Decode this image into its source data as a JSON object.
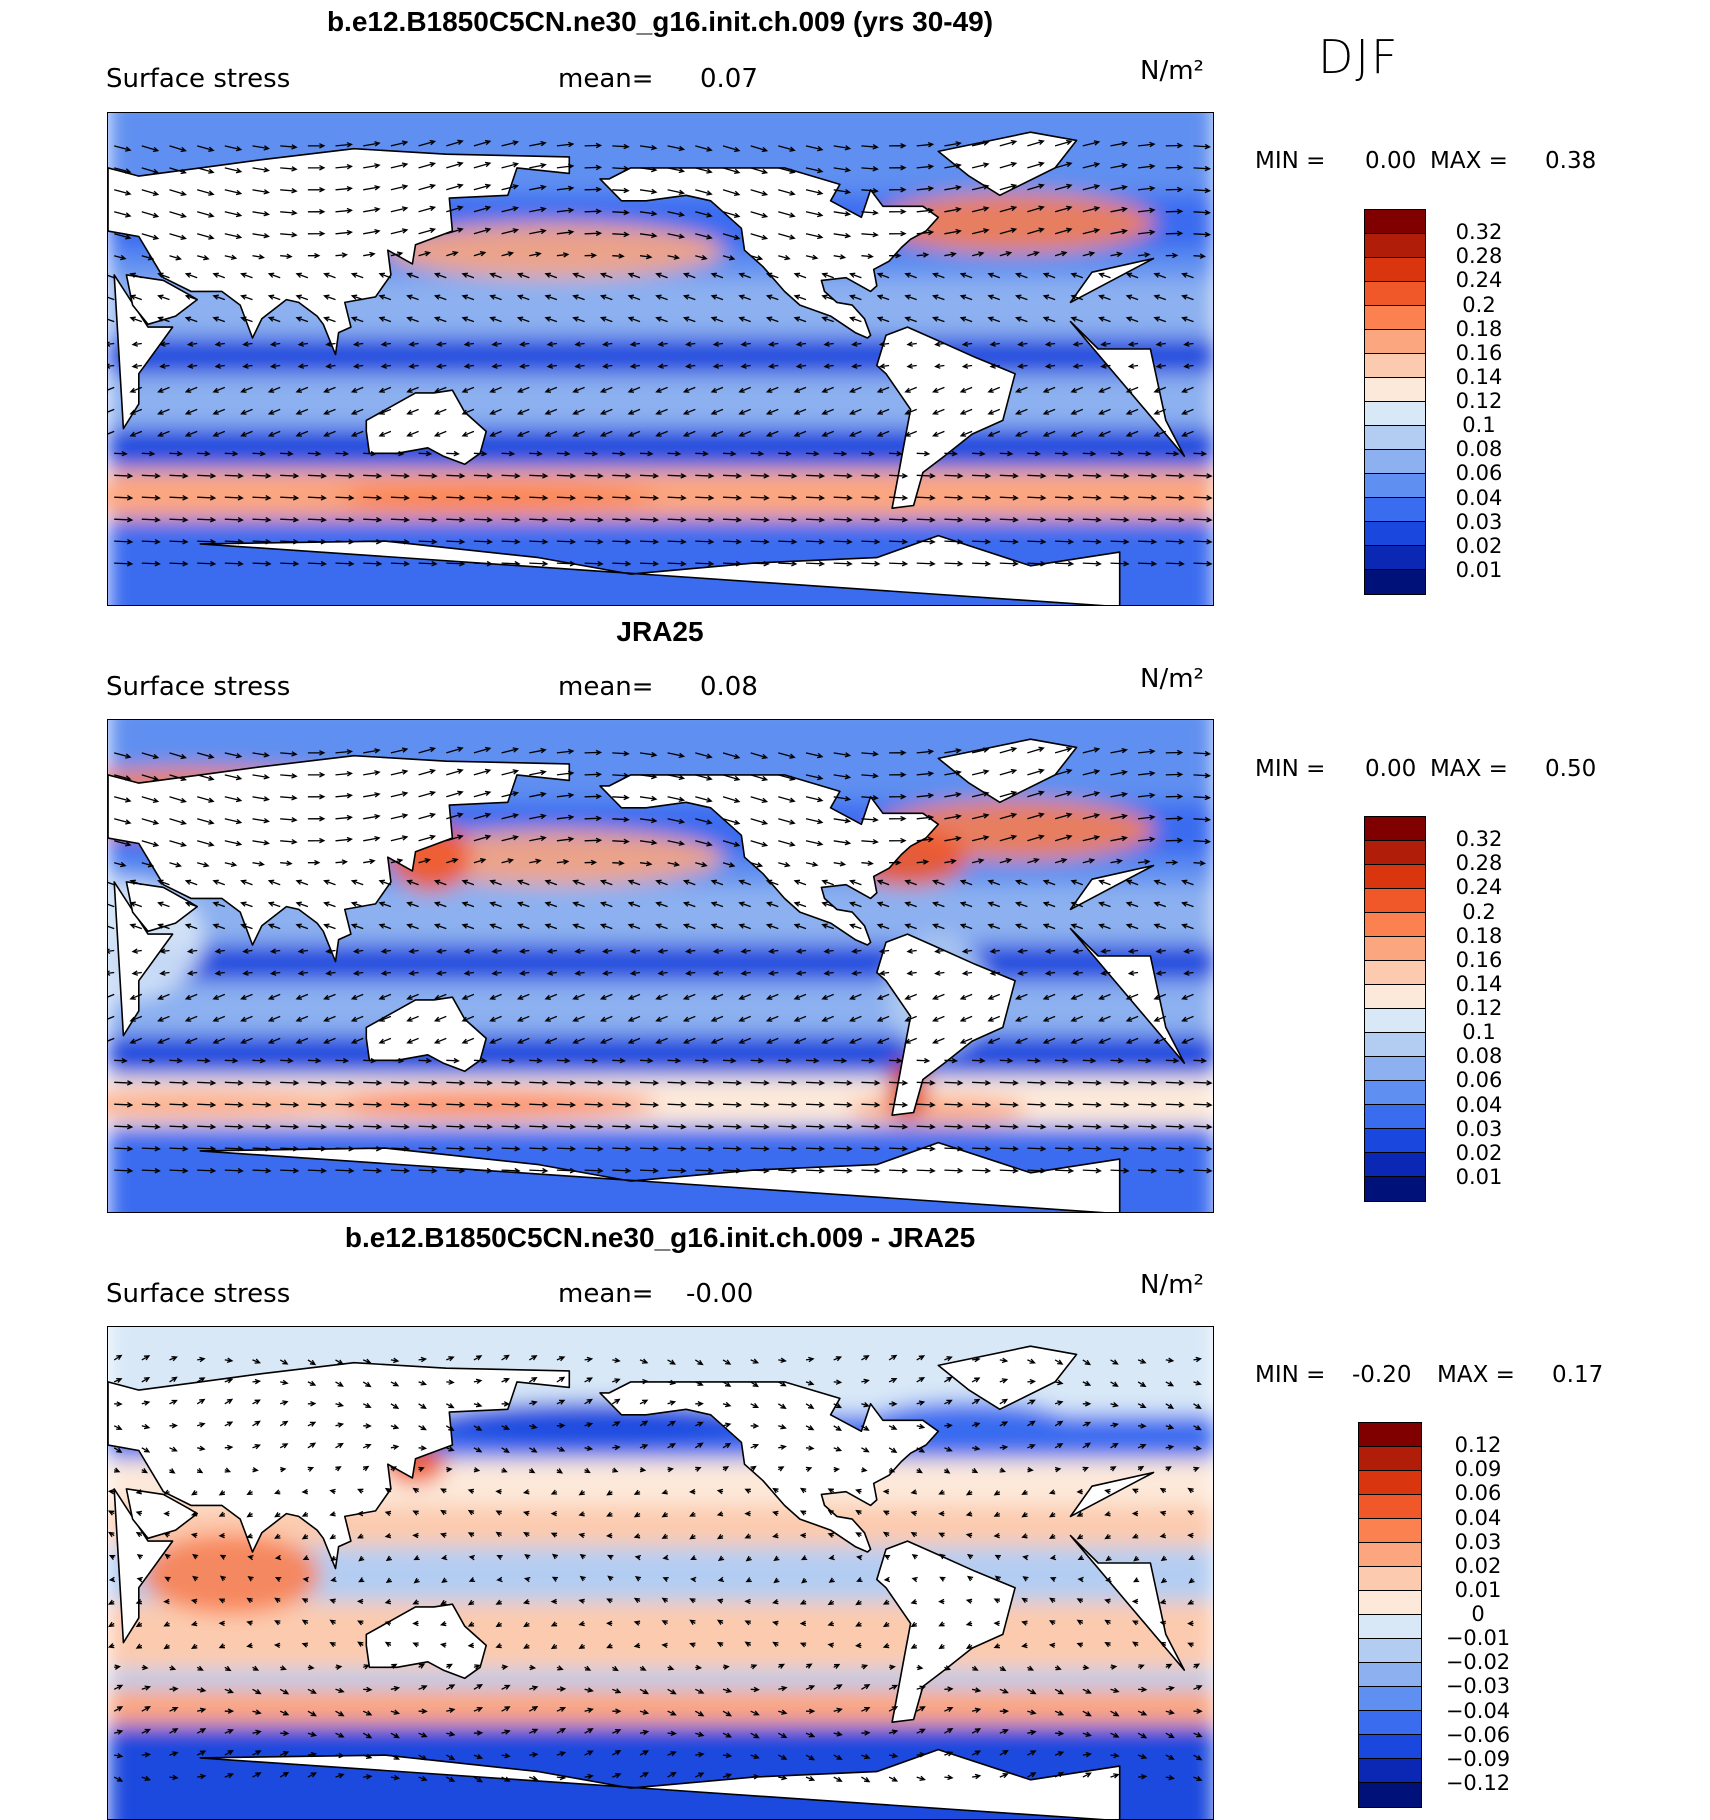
{
  "season": "DJF",
  "units": "N/m²",
  "panels": [
    {
      "title": "b.e12.B1850C5CN.ne30_g16.init.ch.009 (yrs 30-49)",
      "variable": "Surface stress",
      "mean_label": "mean=",
      "mean_value": "0.07",
      "min_label": "MIN =",
      "min_value": "0.00",
      "max_label": "MAX =",
      "max_value": "0.38",
      "colorbar_labels": [
        "0.32",
        "0.28",
        "0.24",
        "0.2",
        "0.18",
        "0.16",
        "0.14",
        "0.12",
        "0.1",
        "0.08",
        "0.06",
        "0.04",
        "0.03",
        "0.02",
        "0.01"
      ],
      "colorbar_colors": [
        "#800000",
        "#b01e0a",
        "#d9350f",
        "#f0582a",
        "#fb8150",
        "#fca680",
        "#fccbaf",
        "#fde9da",
        "#d8e8f7",
        "#b3cdf2",
        "#8cb0f0",
        "#5f8ff0",
        "#3a6cf0",
        "#1a48de",
        "#0a28b4",
        "#00127a"
      ]
    },
    {
      "title": "JRA25",
      "variable": "Surface stress",
      "mean_label": "mean=",
      "mean_value": "0.08",
      "min_label": "MIN =",
      "min_value": "0.00",
      "max_label": "MAX =",
      "max_value": "0.50",
      "colorbar_labels": [
        "0.32",
        "0.28",
        "0.24",
        "0.2",
        "0.18",
        "0.16",
        "0.14",
        "0.12",
        "0.1",
        "0.08",
        "0.06",
        "0.04",
        "0.03",
        "0.02",
        "0.01"
      ],
      "colorbar_colors": [
        "#800000",
        "#b01e0a",
        "#d9350f",
        "#f0582a",
        "#fb8150",
        "#fca680",
        "#fccbaf",
        "#fde9da",
        "#d8e8f7",
        "#b3cdf2",
        "#8cb0f0",
        "#5f8ff0",
        "#3a6cf0",
        "#1a48de",
        "#0a28b4",
        "#00127a"
      ]
    },
    {
      "title": "b.e12.B1850C5CN.ne30_g16.init.ch.009 - JRA25",
      "variable": "Surface stress",
      "mean_label": "mean=",
      "mean_value": "-0.00",
      "min_label": "MIN =",
      "min_value": "-0.20",
      "max_label": "MAX =",
      "max_value": "0.17",
      "colorbar_labels": [
        "0.12",
        "0.09",
        "0.06",
        "0.04",
        "0.03",
        "0.02",
        "0.01",
        "0",
        "-0.01",
        "-0.02",
        "-0.03",
        "-0.04",
        "-0.06",
        "-0.09",
        "-0.12"
      ],
      "colorbar_colors": [
        "#800000",
        "#b01e0a",
        "#d9350f",
        "#f0582a",
        "#fb8150",
        "#fca680",
        "#fccbaf",
        "#fde9da",
        "#d8e8f7",
        "#b3cdf2",
        "#8cb0f0",
        "#5f8ff0",
        "#3a6cf0",
        "#1a48de",
        "#0a28b4",
        "#00127a"
      ]
    }
  ]
}
